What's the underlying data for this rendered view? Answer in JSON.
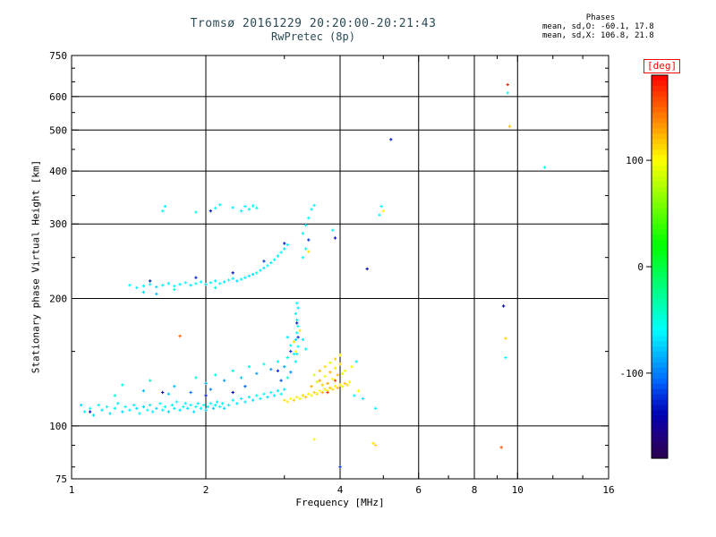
{
  "header": {
    "title_line1": "Tromsø 20161229 20:20:00-20:21:43",
    "title_line2": "RwPretec (8p)",
    "phases": {
      "heading": "Phases",
      "line_o": "mean, sd,O: -60.1, 17.8",
      "line_x": "mean, sd,X: 106.8, 21.8"
    }
  },
  "colors": {
    "title": "#2b4a55",
    "axis": "#000000",
    "background": "#ffffff",
    "deg_label": "#ff0000"
  },
  "chart_data": {
    "type": "scatter",
    "title": "Tromsø 20161229 20:20:00-20:21:43",
    "subtitle": "RwPretec (8p)",
    "xlabel": "Frequency [MHz]",
    "ylabel": "Stationary phase Virtual Height [km]",
    "xscale": "log",
    "yscale": "log",
    "xlim": [
      1,
      16
    ],
    "ylim": [
      75,
      750
    ],
    "grid": true,
    "x_major_ticks": [
      1,
      2,
      4,
      6,
      8,
      10,
      16
    ],
    "x_minor_ticks": [
      3,
      5,
      7,
      9,
      12,
      14
    ],
    "x_gridlines": [
      2,
      4,
      6,
      8,
      10
    ],
    "y_major_ticks": [
      75,
      100,
      200,
      300,
      400,
      500,
      600,
      750
    ],
    "y_minor_ticks": [
      80,
      90,
      150,
      250,
      350,
      450,
      550,
      650,
      700
    ],
    "y_gridlines": [
      100,
      200,
      300,
      400,
      500,
      600
    ],
    "colorbar": {
      "label": "[deg]",
      "min": -180,
      "max": 180,
      "ticks": [
        100,
        0,
        -100
      ],
      "label_color": "#ff0000",
      "position": "right"
    },
    "points_format": [
      "frequency_mhz",
      "virtual_height_km",
      "phase_deg"
    ],
    "points": [
      [
        1.05,
        112,
        -70
      ],
      [
        1.07,
        108,
        -64
      ],
      [
        1.1,
        110,
        -58
      ],
      [
        1.12,
        106,
        -74
      ],
      [
        1.15,
        112,
        -55
      ],
      [
        1.17,
        109,
        -68
      ],
      [
        1.2,
        111,
        -62
      ],
      [
        1.22,
        107,
        -70
      ],
      [
        1.25,
        110,
        -57
      ],
      [
        1.27,
        113,
        -66
      ],
      [
        1.3,
        108,
        -72
      ],
      [
        1.32,
        111,
        -60
      ],
      [
        1.35,
        109,
        -64
      ],
      [
        1.38,
        112,
        -56
      ],
      [
        1.4,
        110,
        -69
      ],
      [
        1.42,
        107,
        -61
      ],
      [
        1.45,
        111,
        -74
      ],
      [
        1.48,
        109,
        -59
      ],
      [
        1.5,
        112,
        -66
      ],
      [
        1.52,
        108,
        -63
      ],
      [
        1.55,
        110,
        -71
      ],
      [
        1.58,
        113,
        -56
      ],
      [
        1.6,
        109,
        -65
      ],
      [
        1.62,
        111,
        -60
      ],
      [
        1.65,
        108,
        -73
      ],
      [
        1.68,
        112,
        -58
      ],
      [
        1.7,
        110,
        -67
      ],
      [
        1.72,
        114,
        -62
      ],
      [
        1.75,
        109,
        -70
      ],
      [
        1.78,
        111,
        -55
      ],
      [
        1.8,
        113,
        -64
      ],
      [
        1.82,
        110,
        -68
      ],
      [
        1.85,
        112,
        -61
      ],
      [
        1.88,
        108,
        -72
      ],
      [
        1.9,
        111,
        -57
      ],
      [
        1.92,
        113,
        -66
      ],
      [
        1.95,
        110,
        -63
      ],
      [
        1.98,
        112,
        -59
      ],
      [
        2.0,
        109,
        -70
      ],
      [
        2.02,
        111,
        -65
      ],
      [
        2.05,
        113,
        -60
      ],
      [
        2.08,
        110,
        -74
      ],
      [
        2.1,
        112,
        -58
      ],
      [
        2.12,
        114,
        -67
      ],
      [
        2.15,
        111,
        -62
      ],
      [
        2.18,
        113,
        -56
      ],
      [
        2.2,
        110,
        -71
      ],
      [
        2.25,
        112,
        -64
      ],
      [
        2.3,
        115,
        -60
      ],
      [
        2.35,
        113,
        -68
      ],
      [
        2.4,
        116,
        -59
      ],
      [
        2.45,
        114,
        -66
      ],
      [
        2.5,
        117,
        -62
      ],
      [
        2.55,
        115,
        -70
      ],
      [
        2.6,
        118,
        -57
      ],
      [
        2.65,
        116,
        -64
      ],
      [
        2.7,
        119,
        -61
      ],
      [
        2.75,
        117,
        -69
      ],
      [
        2.8,
        120,
        -58
      ],
      [
        2.85,
        118,
        -66
      ],
      [
        2.9,
        121,
        -63
      ],
      [
        2.95,
        119,
        -59
      ],
      [
        3.0,
        122,
        -67
      ],
      [
        1.25,
        118,
        -46
      ],
      [
        1.3,
        125,
        -50
      ],
      [
        1.45,
        121,
        -82
      ],
      [
        1.5,
        128,
        -45
      ],
      [
        1.65,
        119,
        -77
      ],
      [
        1.7,
        124,
        -80
      ],
      [
        1.85,
        120,
        -104
      ],
      [
        1.9,
        130,
        -48
      ],
      [
        2.0,
        126,
        -85
      ],
      [
        2.05,
        122,
        -100
      ],
      [
        2.1,
        132,
        -52
      ],
      [
        2.2,
        128,
        -90
      ],
      [
        2.3,
        135,
        -47
      ],
      [
        2.4,
        130,
        -78
      ],
      [
        2.45,
        124,
        -108
      ],
      [
        2.5,
        138,
        -55
      ],
      [
        2.6,
        133,
        -88
      ],
      [
        2.7,
        140,
        -50
      ],
      [
        2.8,
        136,
        -92
      ],
      [
        2.9,
        142,
        -53
      ],
      [
        2.95,
        128,
        -112
      ],
      [
        3.0,
        138,
        -86
      ],
      [
        3.05,
        145,
        -49
      ],
      [
        3.05,
        130,
        -42
      ],
      [
        3.1,
        134,
        -95
      ],
      [
        3.15,
        148,
        -58
      ],
      [
        1.1,
        108,
        -132
      ],
      [
        1.6,
        120,
        -136
      ],
      [
        2.0,
        118,
        -128
      ],
      [
        2.3,
        120,
        -140
      ],
      [
        2.9,
        135,
        -126
      ],
      [
        3.1,
        150,
        -122
      ],
      [
        3.0,
        115,
        108
      ],
      [
        3.05,
        114,
        104
      ],
      [
        3.1,
        116,
        100
      ],
      [
        3.15,
        115,
        114
      ],
      [
        3.2,
        117,
        107
      ],
      [
        3.25,
        116,
        95
      ],
      [
        3.3,
        118,
        112
      ],
      [
        3.35,
        117,
        120
      ],
      [
        3.4,
        119,
        104
      ],
      [
        3.45,
        118,
        98
      ],
      [
        3.5,
        120,
        116
      ],
      [
        3.55,
        119,
        109
      ],
      [
        3.6,
        121,
        102
      ],
      [
        3.65,
        120,
        124
      ],
      [
        3.7,
        122,
        107
      ],
      [
        3.75,
        121,
        99
      ],
      [
        3.8,
        123,
        118
      ],
      [
        3.85,
        122,
        111
      ],
      [
        3.9,
        124,
        103
      ],
      [
        3.95,
        123,
        121
      ],
      [
        4.0,
        125,
        106
      ],
      [
        4.05,
        124,
        97
      ],
      [
        4.1,
        126,
        119
      ],
      [
        4.15,
        125,
        113
      ],
      [
        4.2,
        127,
        101
      ],
      [
        3.45,
        124,
        126
      ],
      [
        3.5,
        132,
        85
      ],
      [
        3.55,
        127,
        88
      ],
      [
        3.6,
        128,
        130
      ],
      [
        3.6,
        135,
        122
      ],
      [
        3.65,
        125,
        117
      ],
      [
        3.7,
        131,
        96
      ],
      [
        3.7,
        138,
        110
      ],
      [
        3.75,
        126,
        128
      ],
      [
        3.8,
        134,
        124
      ],
      [
        3.8,
        141,
        90
      ],
      [
        3.85,
        129,
        100
      ],
      [
        3.9,
        137,
        108
      ],
      [
        3.9,
        144,
        118
      ],
      [
        3.95,
        132,
        121
      ],
      [
        4.0,
        140,
        115
      ],
      [
        4.0,
        147,
        105
      ],
      [
        4.05,
        133,
        92
      ],
      [
        4.1,
        135,
        94
      ],
      [
        3.75,
        120,
        165
      ],
      [
        3.9,
        128,
        158
      ],
      [
        1.75,
        163,
        150
      ],
      [
        1.35,
        215,
        -60
      ],
      [
        1.4,
        212,
        -65
      ],
      [
        1.45,
        214,
        -58
      ],
      [
        1.5,
        216,
        -62
      ],
      [
        1.55,
        213,
        -70
      ],
      [
        1.6,
        215,
        -55
      ],
      [
        1.65,
        217,
        -64
      ],
      [
        1.7,
        214,
        -59
      ],
      [
        1.75,
        216,
        -66
      ],
      [
        1.8,
        218,
        -61
      ],
      [
        1.85,
        215,
        -68
      ],
      [
        1.9,
        217,
        -57
      ],
      [
        1.95,
        219,
        -63
      ],
      [
        2.0,
        216,
        -71
      ],
      [
        2.05,
        218,
        -56
      ],
      [
        2.1,
        220,
        -65
      ],
      [
        2.15,
        217,
        -60
      ],
      [
        2.2,
        219,
        -67
      ],
      [
        2.25,
        221,
        -58
      ],
      [
        2.3,
        223,
        -64
      ],
      [
        2.35,
        220,
        -72
      ],
      [
        2.4,
        222,
        -59
      ],
      [
        2.45,
        224,
        -66
      ],
      [
        2.5,
        226,
        -61
      ],
      [
        2.55,
        228,
        -69
      ],
      [
        2.6,
        230,
        -57
      ],
      [
        2.65,
        233,
        -63
      ],
      [
        2.7,
        236,
        -70
      ],
      [
        2.75,
        239,
        -58
      ],
      [
        2.8,
        243,
        -65
      ],
      [
        2.85,
        247,
        -60
      ],
      [
        2.9,
        252,
        -67
      ],
      [
        2.95,
        257,
        -62
      ],
      [
        3.0,
        262,
        -68
      ],
      [
        3.05,
        268,
        -59
      ],
      [
        1.45,
        207,
        -75
      ],
      [
        1.55,
        205,
        -80
      ],
      [
        1.7,
        210,
        -46
      ],
      [
        2.1,
        212,
        -50
      ],
      [
        1.5,
        220,
        -130
      ],
      [
        1.9,
        224,
        -125
      ],
      [
        2.3,
        230,
        -134
      ],
      [
        2.7,
        245,
        -120
      ],
      [
        3.0,
        270,
        -128
      ],
      [
        3.3,
        250,
        -60
      ],
      [
        3.35,
        262,
        -55
      ],
      [
        3.4,
        275,
        -124
      ],
      [
        3.3,
        285,
        -58
      ],
      [
        3.35,
        298,
        -63
      ],
      [
        3.4,
        310,
        -57
      ],
      [
        3.45,
        325,
        -60
      ],
      [
        3.5,
        332,
        -64
      ],
      [
        1.6,
        322,
        -58
      ],
      [
        1.62,
        330,
        -62
      ],
      [
        1.9,
        320,
        -55
      ],
      [
        2.05,
        322,
        -130
      ],
      [
        2.1,
        327,
        -60
      ],
      [
        2.15,
        333,
        -57
      ],
      [
        2.3,
        328,
        -63
      ],
      [
        2.4,
        322,
        -59
      ],
      [
        2.45,
        330,
        -61
      ],
      [
        2.5,
        325,
        -56
      ],
      [
        2.55,
        331,
        -64
      ],
      [
        2.6,
        327,
        -58
      ],
      [
        3.18,
        142,
        -60
      ],
      [
        3.2,
        148,
        -65
      ],
      [
        3.22,
        154,
        -58
      ],
      [
        3.18,
        160,
        -70
      ],
      [
        3.2,
        166,
        -55
      ],
      [
        3.22,
        172,
        -62
      ],
      [
        3.2,
        178,
        -68
      ],
      [
        3.18,
        184,
        -57
      ],
      [
        3.22,
        190,
        -64
      ],
      [
        3.2,
        195,
        -59
      ],
      [
        3.15,
        158,
        110
      ],
      [
        3.25,
        168,
        106
      ],
      [
        3.2,
        175,
        -130
      ],
      [
        3.18,
        150,
        100
      ],
      [
        3.22,
        162,
        -124
      ],
      [
        3.1,
        155,
        -60
      ],
      [
        3.3,
        160,
        -62
      ],
      [
        3.05,
        162,
        -66
      ],
      [
        3.35,
        152,
        -58
      ],
      [
        5.2,
        475,
        -130
      ],
      [
        9.5,
        640,
        170
      ],
      [
        9.5,
        612,
        -60
      ],
      [
        9.6,
        510,
        118
      ],
      [
        11.5,
        408,
        -55
      ],
      [
        9.3,
        192,
        -140
      ],
      [
        9.4,
        161,
        114
      ],
      [
        9.4,
        145,
        -60
      ],
      [
        9.2,
        89,
        152
      ],
      [
        4.0,
        80,
        -120
      ],
      [
        4.75,
        91,
        108
      ],
      [
        4.8,
        90,
        112
      ],
      [
        3.5,
        93,
        102
      ],
      [
        4.8,
        110,
        -60
      ],
      [
        4.3,
        118,
        -58
      ],
      [
        4.4,
        121,
        100
      ],
      [
        4.5,
        116,
        -62
      ],
      [
        4.25,
        138,
        95
      ],
      [
        4.35,
        142,
        -60
      ],
      [
        4.95,
        330,
        -60
      ],
      [
        5.0,
        322,
        104
      ],
      [
        4.9,
        315,
        -55
      ],
      [
        3.9,
        278,
        -134
      ],
      [
        3.85,
        290,
        -58
      ],
      [
        4.6,
        235,
        -135
      ],
      [
        3.4,
        258,
        108
      ]
    ]
  }
}
